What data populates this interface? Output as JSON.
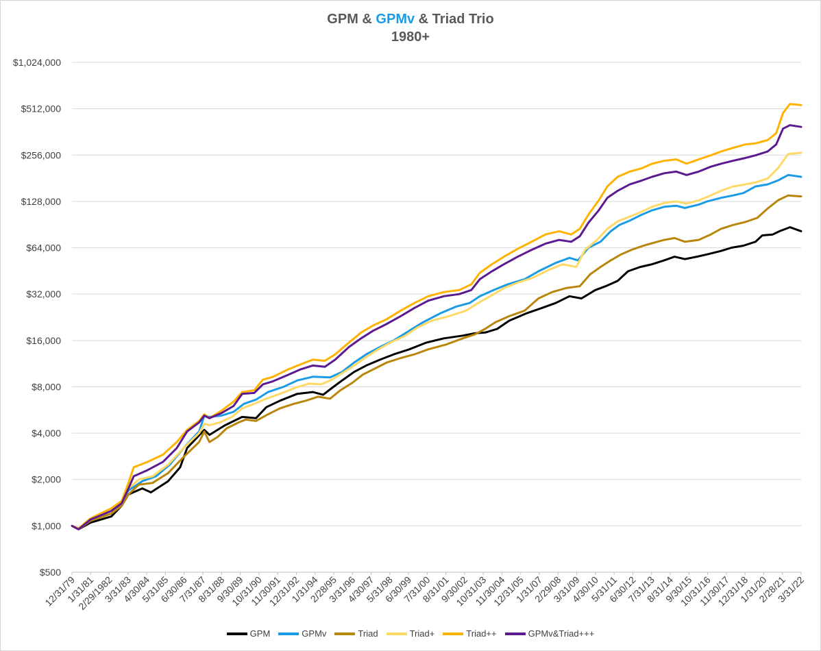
{
  "chart_data": {
    "type": "line",
    "title": {
      "prefix": "GPM & ",
      "highlight": "GPMv",
      "suffix": " & Triad Trio",
      "line2": "1980+"
    },
    "title_highlight_color": "#1a9be6",
    "yscale": "log2",
    "ylim": [
      500,
      1024000
    ],
    "y_ticks": [
      500,
      1000,
      2000,
      4000,
      8000,
      16000,
      32000,
      64000,
      128000,
      256000,
      512000,
      1024000
    ],
    "y_tick_labels": [
      "$500",
      "$1,000",
      "$2,000",
      "$4,000",
      "$8,000",
      "$16,000",
      "$32,000",
      "$64,000",
      "$128,000",
      "$256,000",
      "$512,000",
      "$1,024,000"
    ],
    "x_ticks": [
      "12/31/79",
      "1/31/81",
      "2/29/1982",
      "3/31/83",
      "4/30/84",
      "5/31/85",
      "6/30/86",
      "7/31/87",
      "8/31/88",
      "9/30/89",
      "10/31/90",
      "11/30/91",
      "12/31/92",
      "1/31/94",
      "2/28/95",
      "3/31/96",
      "4/30/97",
      "5/31/98",
      "6/30/99",
      "7/31/00",
      "8/31/01",
      "9/30/02",
      "10/31/03",
      "11/30/04",
      "12/31/05",
      "1/31/07",
      "2/29/08",
      "3/31/09",
      "4/30/10",
      "5/31/11",
      "6/30/12",
      "7/31/13",
      "8/31/14",
      "9/30/15",
      "10/31/16",
      "11/30/17",
      "12/31/18",
      "1/31/20",
      "2/28/21",
      "3/31/22"
    ],
    "xlim": [
      1979.917,
      2022.25
    ],
    "x_unit": "year",
    "grid": true,
    "legend_position": "bottom",
    "series": [
      {
        "name": "GPM",
        "color": "#000000",
        "x": [
          1979.92,
          1980.3,
          1981.0,
          1982.2,
          1982.8,
          1983.2,
          1984.0,
          1984.5,
          1985.5,
          1986.2,
          1986.6,
          1987.6,
          1987.9,
          1988.8,
          1989.8,
          1990.6,
          1991.2,
          1992.0,
          1993.0,
          1993.9,
          1994.5,
          1995.1,
          1995.6,
          1996.3,
          1997.0,
          1997.8,
          1998.6,
          1999.5,
          2000.5,
          2001.5,
          2002.6,
          2003.3,
          2003.9,
          2004.6,
          2005.3,
          2006.3,
          2007.2,
          2008.0,
          2008.8,
          2009.5,
          2010.3,
          2010.9,
          2011.6,
          2012.2,
          2012.9,
          2013.6,
          2014.3,
          2014.9,
          2015.5,
          2016.2,
          2016.8,
          2017.6,
          2018.2,
          2018.9,
          2019.6,
          2020.0,
          2020.6,
          2021.0,
          2021.6,
          2022.25
        ],
        "values": [
          1000,
          950,
          1050,
          1150,
          1350,
          1600,
          1750,
          1650,
          1950,
          2400,
          3200,
          4200,
          3900,
          4500,
          5100,
          5000,
          5900,
          6500,
          7200,
          7400,
          7100,
          8000,
          8800,
          10000,
          11000,
          12000,
          13000,
          14000,
          15500,
          16500,
          17200,
          17800,
          18000,
          19000,
          21500,
          24000,
          26000,
          28000,
          31000,
          30000,
          34000,
          36000,
          39000,
          45000,
          48000,
          50000,
          53000,
          56000,
          54000,
          56000,
          58000,
          61000,
          64000,
          66000,
          70000,
          77000,
          78000,
          82000,
          87000,
          82000
        ]
      },
      {
        "name": "GPMv",
        "color": "#1a9be6",
        "x": [
          1979.92,
          1980.3,
          1981.0,
          1982.2,
          1982.8,
          1983.2,
          1984.0,
          1984.8,
          1985.6,
          1986.5,
          1987.3,
          1987.6,
          1987.9,
          1988.6,
          1989.3,
          1989.9,
          1990.6,
          1991.3,
          1992.2,
          1993.0,
          1993.9,
          1994.9,
          1995.6,
          1996.3,
          1997.0,
          1997.8,
          1998.6,
          1999.5,
          2000.3,
          2001.3,
          2002.2,
          2003.0,
          2003.6,
          2004.4,
          2005.2,
          2006.2,
          2007.0,
          2008.0,
          2008.8,
          2009.3,
          2009.9,
          2010.6,
          2011.2,
          2011.7,
          2012.3,
          2013.0,
          2013.6,
          2014.3,
          2015.0,
          2015.5,
          2016.3,
          2016.8,
          2017.6,
          2018.3,
          2018.9,
          2019.6,
          2020.3,
          2020.9,
          2021.5,
          2022.25
        ],
        "values": [
          1000,
          950,
          1100,
          1250,
          1400,
          1700,
          1950,
          2100,
          2500,
          3300,
          4100,
          5200,
          5100,
          5200,
          5500,
          6200,
          6600,
          7400,
          8000,
          8800,
          9300,
          9200,
          10000,
          11500,
          13000,
          14500,
          16000,
          18500,
          21000,
          24000,
          26500,
          28000,
          31000,
          34000,
          37000,
          40000,
          45000,
          51000,
          55000,
          53000,
          64000,
          70000,
          82000,
          90000,
          96000,
          105000,
          112000,
          118000,
          120000,
          116000,
          122000,
          128000,
          135000,
          140000,
          145000,
          160000,
          165000,
          175000,
          190000,
          185000
        ]
      },
      {
        "name": "Triad",
        "color": "#b8860b",
        "x": [
          1979.92,
          1980.3,
          1981.0,
          1982.2,
          1982.8,
          1983.2,
          1983.8,
          1984.6,
          1985.5,
          1986.4,
          1987.3,
          1987.6,
          1987.9,
          1988.4,
          1988.9,
          1989.6,
          1990.0,
          1990.6,
          1991.3,
          1992.0,
          1992.8,
          1993.5,
          1994.2,
          1994.9,
          1995.5,
          1996.2,
          1996.8,
          1997.5,
          1998.2,
          1999.0,
          1999.8,
          2000.6,
          2001.6,
          2002.6,
          2003.3,
          2003.9,
          2004.5,
          2005.3,
          2006.2,
          2007.0,
          2007.8,
          2008.6,
          2009.4,
          2010.0,
          2010.6,
          2011.2,
          2011.8,
          2012.4,
          2013.1,
          2013.7,
          2014.3,
          2014.9,
          2015.5,
          2016.3,
          2017.0,
          2017.6,
          2018.3,
          2019.0,
          2019.7,
          2020.3,
          2020.9,
          2021.5,
          2022.25
        ],
        "values": [
          1000,
          950,
          1080,
          1200,
          1350,
          1600,
          1850,
          1900,
          2200,
          2800,
          3500,
          4100,
          3500,
          3800,
          4300,
          4700,
          4900,
          4800,
          5300,
          5800,
          6200,
          6500,
          6900,
          6700,
          7600,
          8500,
          9600,
          10500,
          11500,
          12300,
          13000,
          14000,
          15000,
          16500,
          17500,
          19000,
          21000,
          23000,
          25000,
          30000,
          33000,
          35000,
          36000,
          43000,
          48000,
          53000,
          58000,
          62000,
          66000,
          69000,
          72000,
          74000,
          70000,
          72000,
          78000,
          85000,
          90000,
          94000,
          100000,
          115000,
          130000,
          140000,
          138000
        ]
      },
      {
        "name": "Triad+",
        "color": "#ffd966",
        "x": [
          1979.92,
          1980.3,
          1981.0,
          1982.2,
          1982.8,
          1983.2,
          1983.8,
          1984.6,
          1985.5,
          1986.4,
          1987.3,
          1987.6,
          1987.9,
          1988.5,
          1989.2,
          1989.8,
          1990.5,
          1991.2,
          1992.0,
          1992.9,
          1993.7,
          1994.4,
          1995.0,
          1995.6,
          1996.3,
          1997.0,
          1997.7,
          1998.4,
          1999.2,
          2000.0,
          2000.8,
          2001.8,
          2002.8,
          2003.5,
          2004.2,
          2005.0,
          2005.8,
          2006.7,
          2007.6,
          2008.4,
          2009.2,
          2009.7,
          2010.4,
          2011.0,
          2011.6,
          2012.3,
          2013.0,
          2013.6,
          2014.3,
          2015.0,
          2015.6,
          2016.3,
          2017.0,
          2017.6,
          2018.3,
          2019.0,
          2019.6,
          2020.3,
          2020.9,
          2021.5,
          2022.25
        ],
        "values": [
          1000,
          950,
          1100,
          1250,
          1400,
          1750,
          2000,
          2100,
          2500,
          3200,
          4000,
          4600,
          4500,
          4700,
          5100,
          5800,
          6200,
          6700,
          7200,
          7900,
          8400,
          8300,
          8900,
          9800,
          11000,
          12500,
          14000,
          15500,
          17000,
          19500,
          21500,
          23000,
          25000,
          28000,
          31000,
          35000,
          38000,
          41000,
          46000,
          50000,
          48000,
          62000,
          72000,
          85000,
          95000,
          102000,
          110000,
          118000,
          125000,
          128000,
          124000,
          130000,
          140000,
          150000,
          160000,
          165000,
          170000,
          180000,
          210000,
          260000,
          265000
        ]
      },
      {
        "name": "Triad++",
        "color": "#ffb300",
        "x": [
          1979.92,
          1980.3,
          1981.0,
          1982.2,
          1982.8,
          1983.2,
          1983.5,
          1984.3,
          1985.2,
          1986.0,
          1986.6,
          1987.3,
          1987.6,
          1987.9,
          1988.6,
          1989.3,
          1989.8,
          1990.5,
          1991.0,
          1991.6,
          1992.4,
          1993.2,
          1993.9,
          1994.6,
          1995.2,
          1996.0,
          1996.7,
          1997.4,
          1998.2,
          1999.0,
          1999.8,
          2000.6,
          2001.5,
          2002.4,
          2003.1,
          2003.6,
          2004.3,
          2005.0,
          2005.8,
          2006.6,
          2007.4,
          2008.2,
          2008.9,
          2009.4,
          2009.9,
          2010.5,
          2011.0,
          2011.6,
          2012.3,
          2013.0,
          2013.6,
          2014.3,
          2015.0,
          2015.6,
          2016.3,
          2017.0,
          2017.6,
          2018.3,
          2019.0,
          2019.6,
          2020.3,
          2020.8,
          2021.2,
          2021.6,
          2022.25
        ],
        "values": [
          1000,
          960,
          1120,
          1300,
          1450,
          1900,
          2400,
          2600,
          2900,
          3500,
          4200,
          4800,
          5300,
          5000,
          5600,
          6400,
          7400,
          7600,
          8900,
          9300,
          10300,
          11200,
          12000,
          11800,
          13000,
          15500,
          18000,
          20000,
          22000,
          25000,
          28000,
          31000,
          33000,
          34000,
          37000,
          44000,
          50000,
          56000,
          63000,
          70000,
          78000,
          82000,
          78000,
          85000,
          105000,
          130000,
          160000,
          185000,
          200000,
          210000,
          225000,
          235000,
          240000,
          225000,
          240000,
          255000,
          270000,
          285000,
          300000,
          305000,
          320000,
          355000,
          480000,
          550000,
          540000
        ]
      },
      {
        "name": "GPMv&Triad+++",
        "color": "#5b1a8f",
        "x": [
          1979.92,
          1980.3,
          1981.0,
          1982.2,
          1982.8,
          1983.2,
          1983.5,
          1984.3,
          1985.2,
          1986.0,
          1986.6,
          1987.3,
          1987.6,
          1987.9,
          1988.6,
          1989.3,
          1989.8,
          1990.5,
          1991.0,
          1991.6,
          1992.4,
          1993.2,
          1993.9,
          1994.6,
          1995.2,
          1996.0,
          1996.7,
          1997.4,
          1998.2,
          1999.0,
          1999.8,
          2000.6,
          2001.5,
          2002.4,
          2003.1,
          2003.6,
          2004.3,
          2005.0,
          2005.8,
          2006.6,
          2007.4,
          2008.2,
          2008.9,
          2009.4,
          2009.9,
          2010.5,
          2011.0,
          2011.6,
          2012.3,
          2013.0,
          2013.6,
          2014.3,
          2015.0,
          2015.6,
          2016.3,
          2017.0,
          2017.6,
          2018.3,
          2019.0,
          2019.6,
          2020.3,
          2020.8,
          2021.2,
          2021.6,
          2022.25
        ],
        "values": [
          1000,
          950,
          1100,
          1250,
          1400,
          1750,
          2100,
          2300,
          2600,
          3200,
          4100,
          4700,
          5200,
          5000,
          5400,
          6000,
          7200,
          7300,
          8300,
          8700,
          9500,
          10400,
          11000,
          10800,
          12000,
          14500,
          16500,
          18500,
          20500,
          23000,
          26000,
          29000,
          31000,
          32000,
          34000,
          40000,
          45000,
          50000,
          56000,
          62000,
          68000,
          72000,
          70000,
          76000,
          93000,
          112000,
          135000,
          150000,
          165000,
          175000,
          185000,
          195000,
          200000,
          190000,
          200000,
          215000,
          225000,
          235000,
          245000,
          255000,
          270000,
          300000,
          380000,
          400000,
          390000
        ]
      }
    ]
  }
}
